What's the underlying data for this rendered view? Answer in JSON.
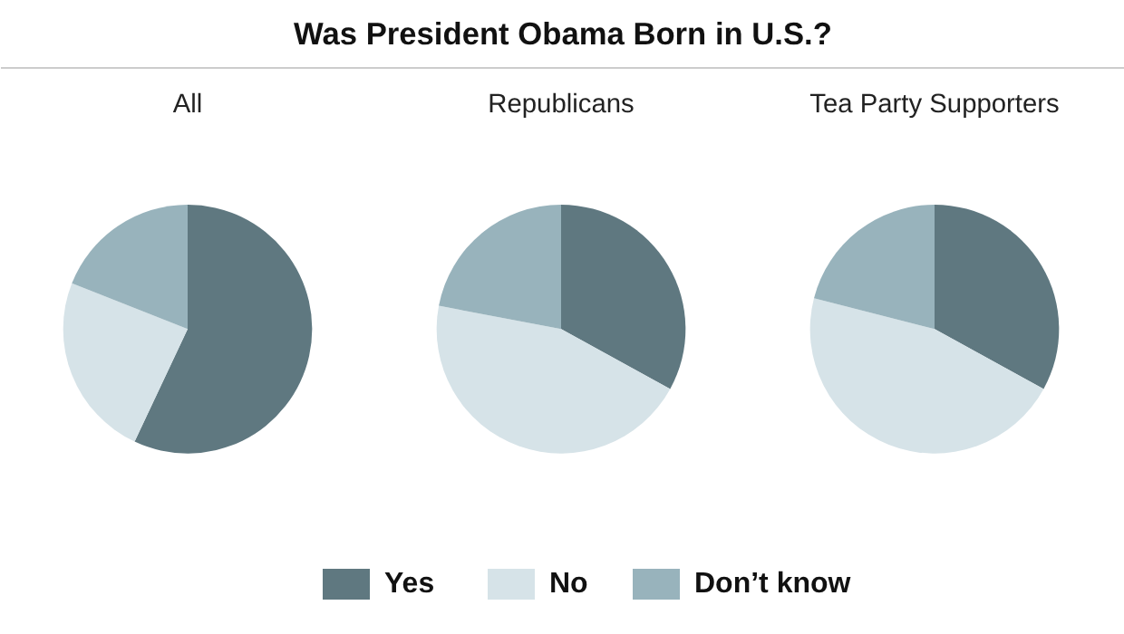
{
  "chart_data": [
    {
      "type": "pie",
      "title": "All",
      "annotations": [
        "Was President Obama Born in U.S.?"
      ],
      "categories": [
        "Yes",
        "No",
        "Don’t know"
      ],
      "values": [
        57,
        24,
        19
      ],
      "colors": [
        "#5f7880",
        "#d6e3e8",
        "#98b3bc"
      ],
      "legend": "bottom"
    },
    {
      "type": "pie",
      "title": "Republicans",
      "values": [
        33,
        45,
        22
      ],
      "colors": [
        "#5f7880",
        "#d6e3e8",
        "#98b3bc"
      ]
    },
    {
      "type": "pie",
      "title": "Tea Party Supporters",
      "values": [
        33,
        46,
        21
      ],
      "colors": [
        "#5f7880",
        "#d6e3e8",
        "#98b3bc"
      ]
    }
  ]
}
